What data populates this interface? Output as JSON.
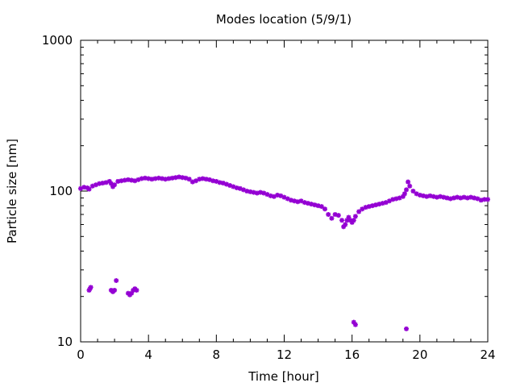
{
  "chart_data": {
    "type": "scatter",
    "title": "Modes location (5/9/1)",
    "xlabel": "Time [hour]",
    "ylabel": "Particle size [nm]",
    "xlim": [
      0,
      24
    ],
    "ylim": [
      10,
      1000
    ],
    "yscale": "log",
    "grid": false,
    "legend": "none",
    "xticks": [
      0,
      4,
      8,
      12,
      16,
      20,
      24
    ],
    "xtick_labels": [
      "0",
      "4",
      "8",
      "12",
      "16",
      "20",
      "24"
    ],
    "yticks": [
      10,
      100,
      1000
    ],
    "ytick_labels": [
      "10",
      "100",
      "1000"
    ],
    "marker_color": "#9400d3",
    "series": [
      {
        "points": [
          [
            0.0,
            104
          ],
          [
            0.2,
            106
          ],
          [
            0.4,
            105
          ],
          [
            0.5,
            103
          ],
          [
            0.7,
            108
          ],
          [
            0.9,
            110
          ],
          [
            1.1,
            112
          ],
          [
            1.3,
            113
          ],
          [
            1.5,
            114
          ],
          [
            1.7,
            116
          ],
          [
            1.8,
            112
          ],
          [
            1.9,
            107
          ],
          [
            2.0,
            110
          ],
          [
            2.2,
            116
          ],
          [
            2.4,
            117
          ],
          [
            2.6,
            118
          ],
          [
            2.8,
            119
          ],
          [
            3.0,
            118
          ],
          [
            3.2,
            117
          ],
          [
            3.4,
            119
          ],
          [
            3.6,
            121
          ],
          [
            3.8,
            122
          ],
          [
            4.0,
            121
          ],
          [
            4.2,
            120
          ],
          [
            4.4,
            121
          ],
          [
            4.6,
            122
          ],
          [
            4.8,
            121
          ],
          [
            5.0,
            120
          ],
          [
            5.2,
            121
          ],
          [
            5.4,
            122
          ],
          [
            5.6,
            123
          ],
          [
            5.8,
            124
          ],
          [
            6.0,
            123
          ],
          [
            6.2,
            122
          ],
          [
            6.4,
            120
          ],
          [
            6.6,
            115
          ],
          [
            6.8,
            117
          ],
          [
            7.0,
            120
          ],
          [
            7.2,
            121
          ],
          [
            7.4,
            120
          ],
          [
            7.6,
            119
          ],
          [
            7.8,
            117
          ],
          [
            8.0,
            116
          ],
          [
            8.2,
            114
          ],
          [
            8.4,
            113
          ],
          [
            8.6,
            111
          ],
          [
            8.8,
            109
          ],
          [
            9.0,
            107
          ],
          [
            9.2,
            105
          ],
          [
            9.4,
            104
          ],
          [
            9.6,
            102
          ],
          [
            9.8,
            100
          ],
          [
            10.0,
            99
          ],
          [
            10.2,
            98
          ],
          [
            10.4,
            97
          ],
          [
            10.6,
            98
          ],
          [
            10.8,
            97
          ],
          [
            11.0,
            95
          ],
          [
            11.2,
            93
          ],
          [
            11.4,
            92
          ],
          [
            11.6,
            94
          ],
          [
            11.8,
            93
          ],
          [
            12.0,
            91
          ],
          [
            12.2,
            89
          ],
          [
            12.4,
            87
          ],
          [
            12.6,
            86
          ],
          [
            12.8,
            85
          ],
          [
            13.0,
            86
          ],
          [
            13.2,
            84
          ],
          [
            13.4,
            83
          ],
          [
            13.6,
            82
          ],
          [
            13.8,
            81
          ],
          [
            14.0,
            80
          ],
          [
            14.2,
            79
          ],
          [
            14.4,
            76
          ],
          [
            14.6,
            70
          ],
          [
            14.8,
            66
          ],
          [
            15.0,
            70
          ],
          [
            15.2,
            69
          ],
          [
            15.4,
            64
          ],
          [
            15.5,
            58
          ],
          [
            15.6,
            60
          ],
          [
            15.7,
            64
          ],
          [
            15.8,
            67
          ],
          [
            15.9,
            64
          ],
          [
            16.0,
            62
          ],
          [
            16.1,
            64
          ],
          [
            16.2,
            68
          ],
          [
            16.4,
            73
          ],
          [
            16.6,
            76
          ],
          [
            16.8,
            78
          ],
          [
            17.0,
            79
          ],
          [
            17.2,
            80
          ],
          [
            17.4,
            81
          ],
          [
            17.6,
            82
          ],
          [
            17.8,
            83
          ],
          [
            18.0,
            84
          ],
          [
            18.2,
            86
          ],
          [
            18.4,
            88
          ],
          [
            18.6,
            89
          ],
          [
            18.8,
            90
          ],
          [
            19.0,
            92
          ],
          [
            19.1,
            96
          ],
          [
            19.2,
            102
          ],
          [
            19.3,
            115
          ],
          [
            19.4,
            108
          ],
          [
            19.6,
            100
          ],
          [
            19.8,
            96
          ],
          [
            20.0,
            94
          ],
          [
            20.2,
            93
          ],
          [
            20.4,
            92
          ],
          [
            20.6,
            93
          ],
          [
            20.8,
            92
          ],
          [
            21.0,
            91
          ],
          [
            21.2,
            92
          ],
          [
            21.4,
            91
          ],
          [
            21.6,
            90
          ],
          [
            21.8,
            89
          ],
          [
            22.0,
            90
          ],
          [
            22.2,
            91
          ],
          [
            22.4,
            90
          ],
          [
            22.6,
            91
          ],
          [
            22.8,
            90
          ],
          [
            23.0,
            91
          ],
          [
            23.2,
            90
          ],
          [
            23.4,
            89
          ],
          [
            23.6,
            87
          ],
          [
            23.8,
            88
          ],
          [
            24.0,
            88
          ],
          [
            0.5,
            22
          ],
          [
            0.6,
            23
          ],
          [
            0.55,
            22.5
          ],
          [
            1.8,
            22
          ],
          [
            1.9,
            21.5
          ],
          [
            2.0,
            22
          ],
          [
            2.1,
            25.5
          ],
          [
            2.8,
            21
          ],
          [
            2.9,
            20.5
          ],
          [
            3.0,
            21
          ],
          [
            3.1,
            22
          ],
          [
            3.2,
            22.5
          ],
          [
            3.3,
            22
          ],
          [
            16.1,
            13.5
          ],
          [
            16.2,
            13
          ],
          [
            19.2,
            12.2
          ]
        ]
      }
    ]
  }
}
